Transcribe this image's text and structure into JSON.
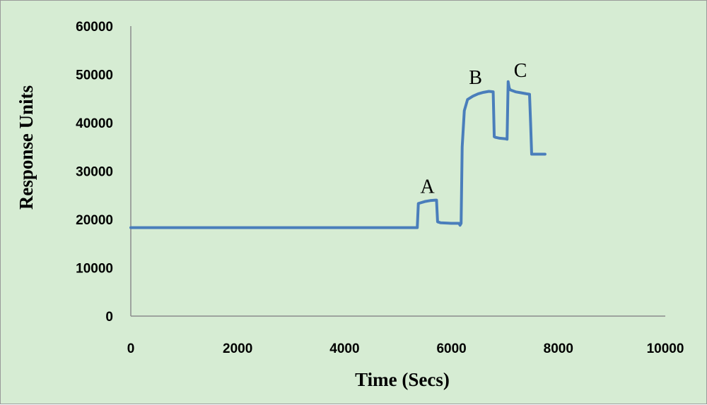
{
  "chart_data": {
    "type": "line",
    "title": "",
    "xlabel": "Time (Secs)",
    "ylabel": "Response Units",
    "xlim": [
      0,
      10000
    ],
    "ylim": [
      0,
      60000
    ],
    "x_ticks": [
      "0",
      "2000",
      "4000",
      "6000",
      "8000",
      "10000"
    ],
    "y_ticks": [
      "0",
      "10000",
      "20000",
      "30000",
      "40000",
      "50000",
      "60000"
    ],
    "grid": false,
    "legend": "none",
    "line_color": "#4a7ebb",
    "series": [
      {
        "x": [
          0,
          5350,
          5360,
          5380,
          5500,
          5600,
          5700,
          5720,
          5740,
          5800,
          6000,
          6140,
          6160,
          6180,
          6200,
          6240,
          6300,
          6400,
          6500,
          6600,
          6700,
          6780,
          6800,
          6820,
          6900,
          7000,
          7040,
          7060,
          7080,
          7100,
          7200,
          7300,
          7400,
          7460,
          7480,
          7500,
          7550,
          7600,
          7750
        ],
        "y": [
          18300,
          18300,
          18300,
          23300,
          23700,
          23900,
          24000,
          24000,
          19500,
          19300,
          19200,
          19200,
          18800,
          19200,
          35000,
          42500,
          44800,
          45500,
          46000,
          46300,
          46500,
          46400,
          37100,
          37000,
          36800,
          36700,
          36600,
          48500,
          47200,
          46800,
          46400,
          46200,
          46000,
          45900,
          40000,
          33500,
          33500,
          33500,
          33500
        ]
      }
    ],
    "annotations": [
      {
        "text": "A",
        "x": 5550,
        "y": 25500
      },
      {
        "text": "B",
        "x": 6450,
        "y": 48000
      },
      {
        "text": "C",
        "x": 7290,
        "y": 49500
      }
    ]
  }
}
